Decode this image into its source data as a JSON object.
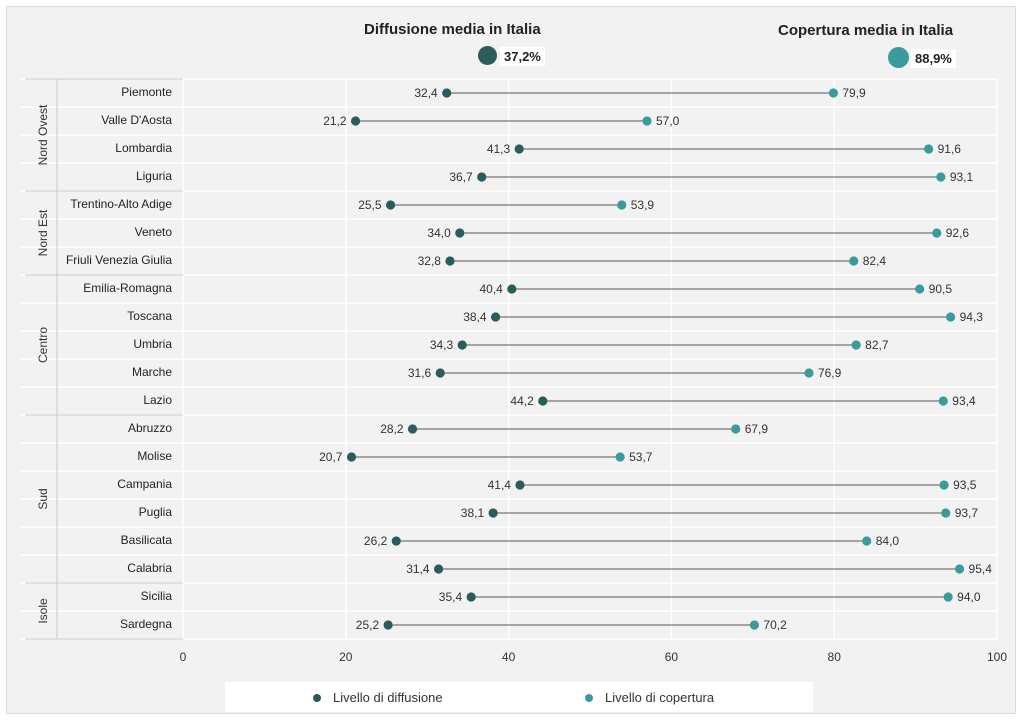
{
  "header": {
    "diffusion_title": "Diffusione media in Italia",
    "diffusion_value": "37,2%",
    "coverage_title": "Copertura media in Italia",
    "coverage_value": "88,9%"
  },
  "legend": {
    "diffusion_label": "Livello di diffusione",
    "coverage_label": "Livello di copertura"
  },
  "colors": {
    "diffusion": "#2a5c5b",
    "coverage": "#3a9a9c",
    "connector": "#555555",
    "grid": "#ffffff",
    "background": "#f2f2f2"
  },
  "chart_data": {
    "type": "dumbbell",
    "xlim": [
      0,
      100
    ],
    "xticks": [
      0,
      20,
      40,
      60,
      80,
      100
    ],
    "grid": true,
    "legend_position": "bottom",
    "groups": [
      {
        "name": "Nord Ovest",
        "regions": [
          "Piemonte",
          "Valle D'Aosta",
          "Lombardia",
          "Liguria"
        ]
      },
      {
        "name": "Nord Est",
        "regions": [
          "Trentino-Alto Adige",
          "Veneto",
          "Friuli Venezia Giulia"
        ]
      },
      {
        "name": "Centro",
        "regions": [
          "Emilia-Romagna",
          "Toscana",
          "Umbria",
          "Marche",
          "Lazio"
        ]
      },
      {
        "name": "Sud",
        "regions": [
          "Abruzzo",
          "Molise",
          "Campania",
          "Puglia",
          "Basilicata",
          "Calabria"
        ]
      },
      {
        "name": "Isole",
        "regions": [
          "Sicilia",
          "Sardegna"
        ]
      }
    ],
    "categories": [
      "Piemonte",
      "Valle D'Aosta",
      "Lombardia",
      "Liguria",
      "Trentino-Alto Adige",
      "Veneto",
      "Friuli Venezia Giulia",
      "Emilia-Romagna",
      "Toscana",
      "Umbria",
      "Marche",
      "Lazio",
      "Abruzzo",
      "Molise",
      "Campania",
      "Puglia",
      "Basilicata",
      "Calabria",
      "Sicilia",
      "Sardegna"
    ],
    "series": [
      {
        "name": "Livello di diffusione",
        "values": [
          32.4,
          21.2,
          41.3,
          36.7,
          25.5,
          34.0,
          32.8,
          40.4,
          38.4,
          34.3,
          31.6,
          44.2,
          28.2,
          20.7,
          41.4,
          38.1,
          26.2,
          31.4,
          35.4,
          25.2
        ],
        "labels": [
          "32,4",
          "21,2",
          "41,3",
          "36,7",
          "25,5",
          "34,0",
          "32,8",
          "40,4",
          "38,4",
          "34,3",
          "31,6",
          "44,2",
          "28,2",
          "20,7",
          "41,4",
          "38,1",
          "26,2",
          "31,4",
          "35,4",
          "25,2"
        ]
      },
      {
        "name": "Livello di copertura",
        "values": [
          79.9,
          57.0,
          91.6,
          93.1,
          53.9,
          92.6,
          82.4,
          90.5,
          94.3,
          82.7,
          76.9,
          93.4,
          67.9,
          53.7,
          93.5,
          93.7,
          84.0,
          95.4,
          94.0,
          70.2
        ],
        "labels": [
          "79,9",
          "57,0",
          "91,6",
          "93,1",
          "53,9",
          "92,6",
          "82,4",
          "90,5",
          "94,3",
          "82,7",
          "76,9",
          "93,4",
          "67,9",
          "53,7",
          "93,5",
          "93,7",
          "84,0",
          "95,4",
          "94,0",
          "70,2"
        ]
      }
    ]
  }
}
